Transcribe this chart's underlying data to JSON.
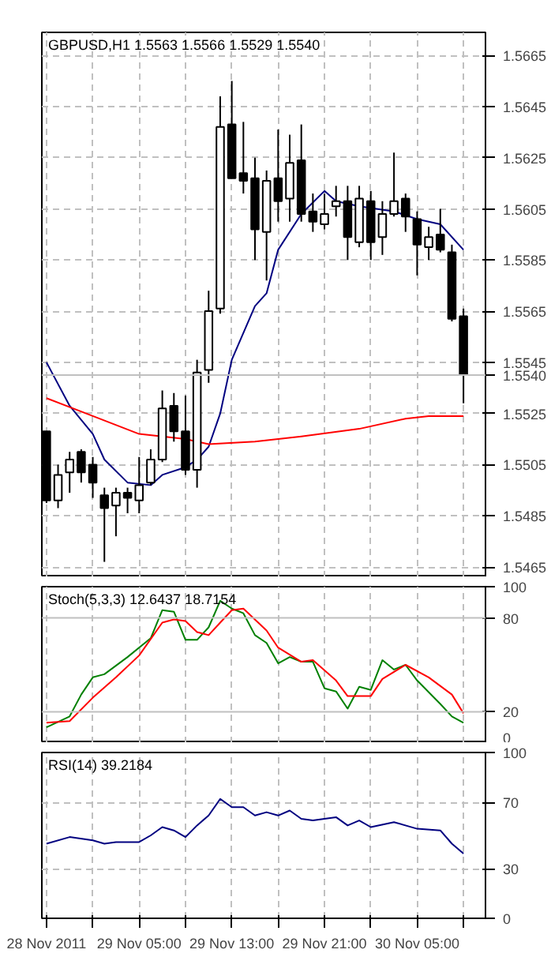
{
  "chart_data": [
    {
      "type": "candlestick",
      "title": "GBPUSD,H1  1.5563 1.5566 1.5529 1.5540",
      "x": [
        "2011-11-28T21:00",
        "2011-11-28T22:00",
        "2011-11-28T23:00",
        "2011-11-29T00:00",
        "2011-11-29T01:00",
        "2011-11-29T02:00",
        "2011-11-29T03:00",
        "2011-11-29T04:00",
        "2011-11-29T05:00",
        "2011-11-29T06:00",
        "2011-11-29T07:00",
        "2011-11-29T08:00",
        "2011-11-29T09:00",
        "2011-11-29T10:00",
        "2011-11-29T11:00",
        "2011-11-29T12:00",
        "2011-11-29T13:00",
        "2011-11-29T14:00",
        "2011-11-29T15:00",
        "2011-11-29T16:00",
        "2011-11-29T17:00",
        "2011-11-29T18:00",
        "2011-11-29T19:00",
        "2011-11-29T20:00",
        "2011-11-29T21:00",
        "2011-11-29T22:00",
        "2011-11-29T23:00",
        "2011-11-30T00:00",
        "2011-11-30T01:00",
        "2011-11-30T02:00",
        "2011-11-30T03:00",
        "2011-11-30T04:00",
        "2011-11-30T05:00",
        "2011-11-30T06:00",
        "2011-11-30T07:00",
        "2011-11-30T08:00",
        "2011-11-30T09:00"
      ],
      "ohlc": [
        [
          1.5518,
          1.5518,
          1.549,
          1.5491
        ],
        [
          1.5491,
          1.5505,
          1.5488,
          1.5501
        ],
        [
          1.5502,
          1.551,
          1.5494,
          1.5507
        ],
        [
          1.551,
          1.5511,
          1.5498,
          1.5502
        ],
        [
          1.5505,
          1.5508,
          1.5492,
          1.5498
        ],
        [
          1.5493,
          1.5496,
          1.5467,
          1.5488
        ],
        [
          1.5489,
          1.5496,
          1.5477,
          1.5494
        ],
        [
          1.5494,
          1.5496,
          1.5486,
          1.5492
        ],
        [
          1.5491,
          1.5508,
          1.5486,
          1.5497
        ],
        [
          1.5498,
          1.5511,
          1.5497,
          1.5507
        ],
        [
          1.5507,
          1.5534,
          1.5506,
          1.5527
        ],
        [
          1.5528,
          1.5533,
          1.5514,
          1.5518
        ],
        [
          1.5518,
          1.5532,
          1.5501,
          1.5503
        ],
        [
          1.5503,
          1.5546,
          1.5496,
          1.5541
        ],
        [
          1.5542,
          1.5573,
          1.5537,
          1.5565
        ],
        [
          1.5566,
          1.5649,
          1.5564,
          1.5637
        ],
        [
          1.5638,
          1.5655,
          1.5617,
          1.5617
        ],
        [
          1.5619,
          1.5639,
          1.5611,
          1.5616
        ],
        [
          1.5617,
          1.5625,
          1.5585,
          1.5597
        ],
        [
          1.5596,
          1.562,
          1.5577,
          1.5616
        ],
        [
          1.5617,
          1.5636,
          1.56,
          1.5608
        ],
        [
          1.5609,
          1.5634,
          1.56,
          1.5623
        ],
        [
          1.5624,
          1.5638,
          1.56,
          1.5603
        ],
        [
          1.5604,
          1.5611,
          1.5596,
          1.56
        ],
        [
          1.5599,
          1.5611,
          1.5597,
          1.5603
        ],
        [
          1.5606,
          1.5614,
          1.5602,
          1.5608
        ],
        [
          1.5608,
          1.5614,
          1.5585,
          1.5594
        ],
        [
          1.5592,
          1.5614,
          1.559,
          1.5609
        ],
        [
          1.5608,
          1.5612,
          1.5585,
          1.5592
        ],
        [
          1.5594,
          1.5608,
          1.5587,
          1.5603
        ],
        [
          1.5603,
          1.5627,
          1.5602,
          1.5608
        ],
        [
          1.5609,
          1.5611,
          1.5596,
          1.5602
        ],
        [
          1.5601,
          1.5604,
          1.5579,
          1.5591
        ],
        [
          1.559,
          1.5598,
          1.5585,
          1.5594
        ],
        [
          1.5595,
          1.5605,
          1.5588,
          1.5589
        ],
        [
          1.5588,
          1.5591,
          1.5561,
          1.5562
        ],
        [
          1.5563,
          1.5566,
          1.5529,
          1.554
        ]
      ],
      "series": [
        {
          "type": "line",
          "color": "#000080",
          "x": [
            "2011-11-28T21:00",
            "2011-11-28T23:00",
            "2011-11-29T01:00",
            "2011-11-29T02:00",
            "2011-11-29T04:00",
            "2011-11-29T06:00",
            "2011-11-29T07:00",
            "2011-11-29T09:00",
            "2011-11-29T10:00",
            "2011-11-29T11:00",
            "2011-11-29T12:00",
            "2011-11-29T13:00",
            "2011-11-29T15:00",
            "2011-11-29T16:00",
            "2011-11-29T17:00",
            "2011-11-29T19:00",
            "2011-11-29T21:00",
            "2011-11-29T22:00",
            "2011-11-30T00:00",
            "2011-11-30T03:00",
            "2011-11-30T05:00",
            "2011-11-30T07:00",
            "2011-11-30T09:00"
          ],
          "values": [
            1.5545,
            1.5528,
            1.5517,
            1.5507,
            1.5498,
            1.5497,
            1.5501,
            1.5504,
            1.5507,
            1.5512,
            1.5525,
            1.5546,
            1.5567,
            1.5572,
            1.5589,
            1.5603,
            1.5612,
            1.5608,
            1.5606,
            1.5604,
            1.5601,
            1.5599,
            1.5589
          ]
        },
        {
          "type": "line",
          "color": "#ff0000",
          "x": [
            "2011-11-28T21:00",
            "2011-11-29T01:00",
            "2011-11-29T05:00",
            "2011-11-29T09:00",
            "2011-11-29T11:00",
            "2011-11-29T15:00",
            "2011-11-29T19:00",
            "2011-11-30T00:00",
            "2011-11-30T04:00",
            "2011-11-30T06:00",
            "2011-11-30T09:00"
          ],
          "values": [
            1.5531,
            1.5524,
            1.5517,
            1.5515,
            1.5513,
            1.5514,
            1.5516,
            1.5519,
            1.5523,
            1.5524,
            1.5524
          ]
        }
      ],
      "xlim": [
        "2011-11-28T20:36",
        "2011-11-30T10:54"
      ],
      "xticks": [
        "2011-11-28T21:00",
        "2011-11-29T01:00",
        "2011-11-29T05:00",
        "2011-11-29T09:00",
        "2011-11-29T13:00",
        "2011-11-29T17:00",
        "2011-11-29T21:00",
        "2011-11-30T01:00",
        "2011-11-30T05:00",
        "2011-11-30T09:00"
      ],
      "ylim": [
        1.5461,
        1.5674
      ],
      "yticks": [
        {
          "value": 1.5465,
          "label": "1.5465"
        },
        {
          "value": 1.5485,
          "label": "1.5485"
        },
        {
          "value": 1.5505,
          "label": "1.5505"
        },
        {
          "value": 1.5525,
          "label": "1.5525"
        },
        {
          "value": 1.5545,
          "label": "1.5545"
        },
        {
          "value": 1.5565,
          "label": "1.5565"
        },
        {
          "value": 1.5585,
          "label": "1.5585"
        },
        {
          "value": 1.5605,
          "label": "1.5605"
        },
        {
          "value": 1.5625,
          "label": "1.5625"
        },
        {
          "value": 1.5645,
          "label": "1.5645"
        },
        {
          "value": 1.5665,
          "label": "1.5665"
        }
      ],
      "ref_lines": [
        {
          "axis": "y",
          "value": 1.554,
          "label": "1.5540",
          "color": "#c0c0c0",
          "line_style": "solid"
        }
      ],
      "grid": true,
      "tick_labels": "y"
    },
    {
      "type": "line",
      "title": "Stoch(5,3,3) 12.6437 18.7154",
      "series": [
        {
          "color": "#008000",
          "x": [
            "2011-11-28T21:00",
            "2011-11-28T23:00",
            "2011-11-29T00:00",
            "2011-11-29T01:00",
            "2011-11-29T02:00",
            "2011-11-29T04:00",
            "2011-11-29T06:00",
            "2011-11-29T07:00",
            "2011-11-29T08:00",
            "2011-11-29T09:00",
            "2011-11-29T10:00",
            "2011-11-29T11:00",
            "2011-11-29T12:00",
            "2011-11-29T13:00",
            "2011-11-29T14:00",
            "2011-11-29T15:00",
            "2011-11-29T16:00",
            "2011-11-29T17:00",
            "2011-11-29T18:00",
            "2011-11-29T19:00",
            "2011-11-29T20:00",
            "2011-11-29T21:00",
            "2011-11-29T22:00",
            "2011-11-29T23:00",
            "2011-11-30T00:00",
            "2011-11-30T01:00",
            "2011-11-30T02:00",
            "2011-11-30T03:00",
            "2011-11-30T04:00",
            "2011-11-30T05:00",
            "2011-11-30T07:00",
            "2011-11-30T08:00",
            "2011-11-30T09:00"
          ],
          "values": [
            10,
            17,
            31,
            42,
            44,
            55,
            67,
            85,
            84,
            66,
            66,
            74,
            91,
            86,
            83,
            69,
            64,
            51,
            55,
            52,
            52,
            35,
            33,
            22,
            36,
            34,
            53,
            47,
            50,
            40,
            25,
            17,
            13
          ]
        },
        {
          "color": "#ff0000",
          "x": [
            "2011-11-28T21:00",
            "2011-11-28T23:00",
            "2011-11-29T01:00",
            "2011-11-29T03:00",
            "2011-11-29T05:00",
            "2011-11-29T07:00",
            "2011-11-29T08:00",
            "2011-11-29T09:00",
            "2011-11-29T10:00",
            "2011-11-29T11:00",
            "2011-11-29T12:00",
            "2011-11-29T13:00",
            "2011-11-29T14:00",
            "2011-11-29T16:00",
            "2011-11-29T17:00",
            "2011-11-29T19:00",
            "2011-11-29T20:00",
            "2011-11-29T22:00",
            "2011-11-29T23:00",
            "2011-11-30T01:00",
            "2011-11-30T02:00",
            "2011-11-30T04:00",
            "2011-11-30T06:00",
            "2011-11-30T08:00",
            "2011-11-30T09:00"
          ],
          "values": [
            13,
            14,
            29,
            42,
            56,
            77,
            79,
            78,
            71,
            69,
            77,
            85,
            86,
            72,
            61,
            52,
            53,
            40,
            30,
            30,
            41,
            50,
            42,
            31,
            19
          ]
        }
      ],
      "xlim": [
        "2011-11-28T20:36",
        "2011-11-30T10:54"
      ],
      "xticks": [
        "2011-11-28T21:00",
        "2011-11-29T01:00",
        "2011-11-29T05:00",
        "2011-11-29T09:00",
        "2011-11-29T13:00",
        "2011-11-29T17:00",
        "2011-11-29T21:00",
        "2011-11-30T01:00",
        "2011-11-30T05:00",
        "2011-11-30T09:00"
      ],
      "ylim": [
        0,
        100
      ],
      "yticks": [
        0,
        20,
        80,
        100
      ],
      "ref_lines": [
        {
          "axis": "y",
          "value": 20,
          "color": "#c0c0c0",
          "line_style": "solid"
        },
        {
          "axis": "y",
          "value": 80,
          "color": "#c0c0c0",
          "line_style": "solid"
        }
      ],
      "grid": "x",
      "tick_labels": "y"
    },
    {
      "type": "line",
      "title": "RSI(14) 39.2184",
      "series": [
        {
          "color": "#000080",
          "x": [
            "2011-11-28T21:00",
            "2011-11-28T23:00",
            "2011-11-29T01:00",
            "2011-11-29T02:00",
            "2011-11-29T03:00",
            "2011-11-29T05:00",
            "2011-11-29T06:00",
            "2011-11-29T07:00",
            "2011-11-29T08:00",
            "2011-11-29T09:00",
            "2011-11-29T10:00",
            "2011-11-29T11:00",
            "2011-11-29T12:00",
            "2011-11-29T13:00",
            "2011-11-29T14:00",
            "2011-11-29T15:00",
            "2011-11-29T16:00",
            "2011-11-29T17:00",
            "2011-11-29T18:00",
            "2011-11-29T19:00",
            "2011-11-29T20:00",
            "2011-11-29T22:00",
            "2011-11-29T23:00",
            "2011-11-30T00:00",
            "2011-11-30T01:00",
            "2011-11-30T03:00",
            "2011-11-30T05:00",
            "2011-11-30T07:00",
            "2011-11-30T08:00",
            "2011-11-30T09:00"
          ],
          "values": [
            45,
            49,
            47,
            45,
            46,
            46,
            50,
            55,
            53,
            49,
            56,
            62,
            72,
            67,
            67,
            62,
            64,
            62,
            65,
            60,
            59,
            61,
            56,
            59,
            55,
            58,
            54,
            53,
            45,
            39
          ]
        }
      ],
      "xlim": [
        "2011-11-28T20:36",
        "2011-11-30T10:54"
      ],
      "xticks": [
        {
          "value": "2011-11-28T21:00",
          "label": "28 Nov 2011"
        },
        {
          "value": "2011-11-29T01:00",
          "label": null
        },
        {
          "value": "2011-11-29T05:00",
          "label": "29 Nov 05:00"
        },
        {
          "value": "2011-11-29T09:00",
          "label": null
        },
        {
          "value": "2011-11-29T13:00",
          "label": "29 Nov 13:00"
        },
        {
          "value": "2011-11-29T17:00",
          "label": null
        },
        {
          "value": "2011-11-29T21:00",
          "label": "29 Nov 21:00"
        },
        {
          "value": "2011-11-30T01:00",
          "label": null
        },
        {
          "value": "2011-11-30T05:00",
          "label": "30 Nov 05:00"
        },
        {
          "value": "2011-11-30T09:00",
          "label": null
        }
      ],
      "ylim": [
        0,
        100
      ],
      "yticks": [
        0,
        30,
        70,
        100
      ],
      "grid": true
    }
  ]
}
